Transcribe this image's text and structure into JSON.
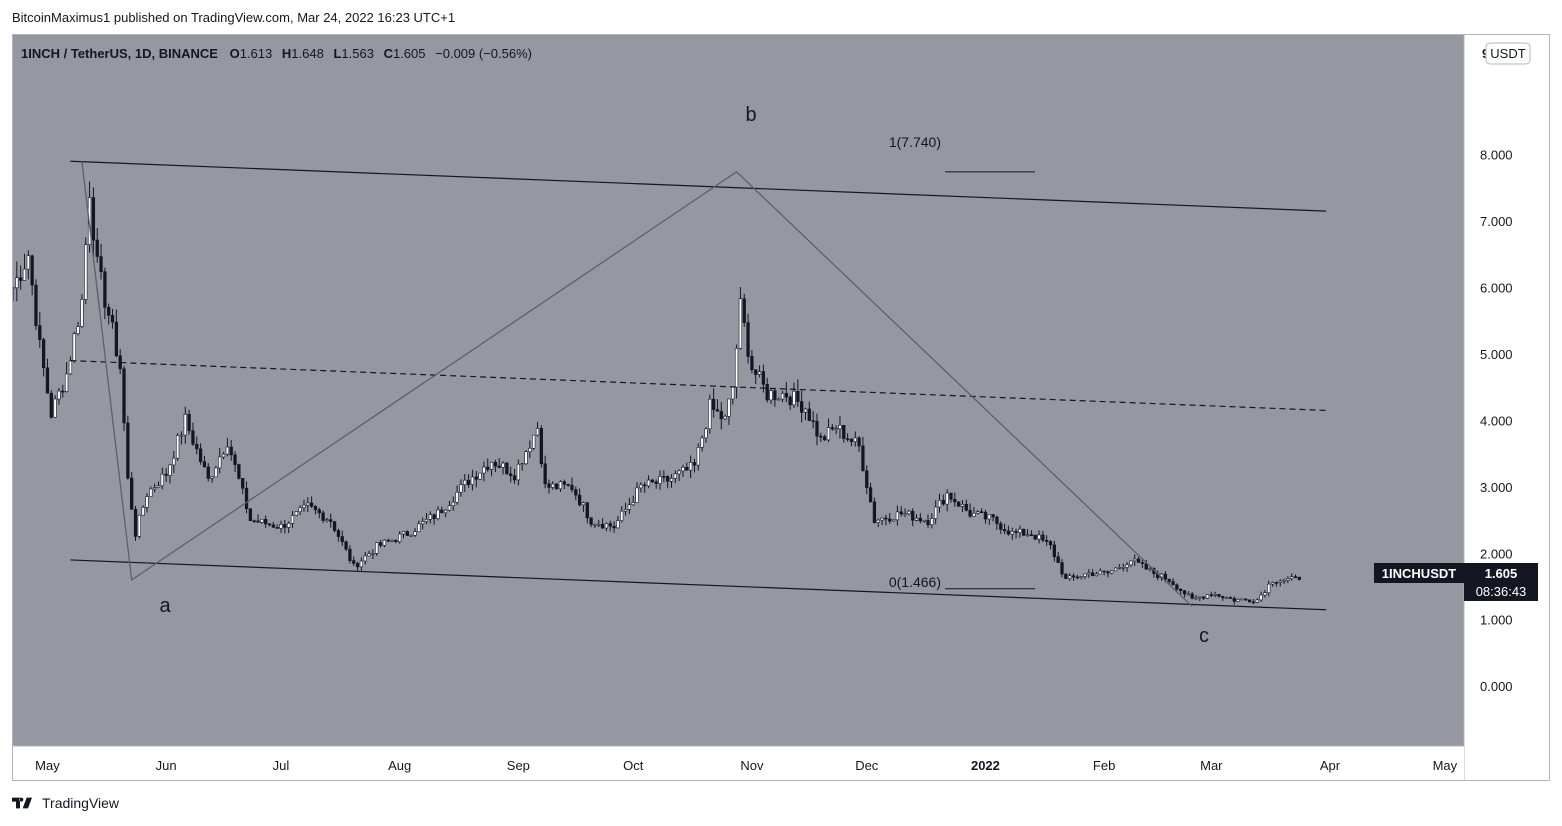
{
  "header": {
    "publisher": "BitcoinMaximus1 published on TradingView.com, Mar 24, 2022 16:23 UTC+1"
  },
  "legend": {
    "symbol": "1INCH / TetherUS, 1D, BINANCE",
    "o_label": "O",
    "o_value": "1.613",
    "h_label": "H",
    "h_value": "1.648",
    "l_label": "L",
    "l_value": "1.563",
    "c_label": "C",
    "c_value": "1.605",
    "change": "−0.009 (−0.56%)"
  },
  "axis": {
    "currency": "USDT",
    "corner_digit": "9",
    "y_ticks": [
      "8.000",
      "7.000",
      "6.000",
      "5.000",
      "4.000",
      "3.000",
      "2.000",
      "1.000",
      "0.000"
    ],
    "x_ticks": [
      "May",
      "Jun",
      "Jul",
      "Aug",
      "Sep",
      "Oct",
      "Nov",
      "Dec",
      "2022",
      "Feb",
      "Mar",
      "Apr",
      "May"
    ]
  },
  "price_tag": {
    "symbol": "1INCHUSDT",
    "price": "1.605",
    "countdown": "08:36:43"
  },
  "annotations": {
    "wave_a": "a",
    "wave_b": "b",
    "wave_c": "c",
    "fib_top": "1(7.740)",
    "fib_bottom": "0(1.466)"
  },
  "colors": {
    "chart_bg": "#9598a1",
    "candle_up": "#ffffff",
    "candle_down": "#131722",
    "line": "#131722",
    "wave_line": "#5d606b",
    "tag_bg": "#131722"
  },
  "chart_data": {
    "type": "candlestick",
    "title": "1INCH / TetherUS, 1D, BINANCE",
    "ylim": [
      -0.9,
      9.8
    ],
    "y_scale": "linear",
    "grid": false,
    "x_range": [
      "2021-04-22",
      "2022-05-06"
    ],
    "close_series": [
      [
        "2021-04-22",
        6.0
      ],
      [
        "2021-04-26",
        6.5
      ],
      [
        "2021-04-29",
        5.1
      ],
      [
        "2021-05-02",
        4.1
      ],
      [
        "2021-05-06",
        4.7
      ],
      [
        "2021-05-10",
        5.8
      ],
      [
        "2021-05-12",
        7.5
      ],
      [
        "2021-05-14",
        6.3
      ],
      [
        "2021-05-17",
        5.6
      ],
      [
        "2021-05-20",
        4.8
      ],
      [
        "2021-05-22",
        3.1
      ],
      [
        "2021-05-24",
        2.3
      ],
      [
        "2021-05-27",
        2.9
      ],
      [
        "2021-06-01",
        3.2
      ],
      [
        "2021-06-06",
        4.0
      ],
      [
        "2021-06-12",
        3.1
      ],
      [
        "2021-06-17",
        3.7
      ],
      [
        "2021-06-23",
        2.5
      ],
      [
        "2021-07-01",
        2.4
      ],
      [
        "2021-07-08",
        2.7
      ],
      [
        "2021-07-14",
        2.5
      ],
      [
        "2021-07-20",
        1.8
      ],
      [
        "2021-07-26",
        2.1
      ],
      [
        "2021-08-03",
        2.3
      ],
      [
        "2021-08-11",
        2.6
      ],
      [
        "2021-08-19",
        3.1
      ],
      [
        "2021-08-25",
        3.4
      ],
      [
        "2021-08-31",
        3.2
      ],
      [
        "2021-09-06",
        3.9
      ],
      [
        "2021-09-08",
        3.0
      ],
      [
        "2021-09-15",
        3.0
      ],
      [
        "2021-09-20",
        2.5
      ],
      [
        "2021-09-26",
        2.4
      ],
      [
        "2021-10-03",
        3.0
      ],
      [
        "2021-10-10",
        3.1
      ],
      [
        "2021-10-17",
        3.3
      ],
      [
        "2021-10-21",
        4.2
      ],
      [
        "2021-10-25",
        4.0
      ],
      [
        "2021-10-27",
        4.5
      ],
      [
        "2021-10-29",
        5.7
      ],
      [
        "2021-11-01",
        4.8
      ],
      [
        "2021-11-05",
        4.4
      ],
      [
        "2021-11-10",
        4.4
      ],
      [
        "2021-11-15",
        4.2
      ],
      [
        "2021-11-19",
        3.7
      ],
      [
        "2021-11-23",
        3.9
      ],
      [
        "2021-11-29",
        3.6
      ],
      [
        "2021-12-03",
        2.5
      ],
      [
        "2021-12-10",
        2.6
      ],
      [
        "2021-12-17",
        2.5
      ],
      [
        "2021-12-22",
        2.9
      ],
      [
        "2021-12-28",
        2.6
      ],
      [
        "2022-01-03",
        2.5
      ],
      [
        "2022-01-08",
        2.3
      ],
      [
        "2022-01-13",
        2.3
      ],
      [
        "2022-01-18",
        2.1
      ],
      [
        "2022-01-22",
        1.6
      ],
      [
        "2022-01-28",
        1.7
      ],
      [
        "2022-02-02",
        1.7
      ],
      [
        "2022-02-08",
        1.9
      ],
      [
        "2022-02-14",
        1.7
      ],
      [
        "2022-02-18",
        1.6
      ],
      [
        "2022-02-24",
        1.3
      ],
      [
        "2022-03-01",
        1.4
      ],
      [
        "2022-03-07",
        1.3
      ],
      [
        "2022-03-13",
        1.3
      ],
      [
        "2022-03-17",
        1.6
      ],
      [
        "2022-03-24",
        1.605
      ]
    ],
    "trendlines": [
      {
        "name": "upper channel",
        "points": [
          [
            "2021-05-07",
            7.9
          ],
          [
            "2022-03-31",
            7.15
          ]
        ],
        "style": "solid"
      },
      {
        "name": "mid channel",
        "points": [
          [
            "2021-05-07",
            4.9
          ],
          [
            "2022-03-31",
            4.15
          ]
        ],
        "style": "dashed"
      },
      {
        "name": "lower channel",
        "points": [
          [
            "2021-05-07",
            1.9
          ],
          [
            "2022-03-31",
            1.15
          ]
        ],
        "style": "solid"
      }
    ],
    "waves": [
      [
        "2021-05-10",
        7.9
      ],
      [
        "2021-05-23",
        1.6
      ],
      [
        "2021-10-28",
        7.74
      ],
      [
        "2022-02-24",
        1.2
      ]
    ],
    "fib_levels": [
      {
        "label": "1(7.740)",
        "value": 7.74
      },
      {
        "label": "0(1.466)",
        "value": 1.466
      }
    ]
  }
}
